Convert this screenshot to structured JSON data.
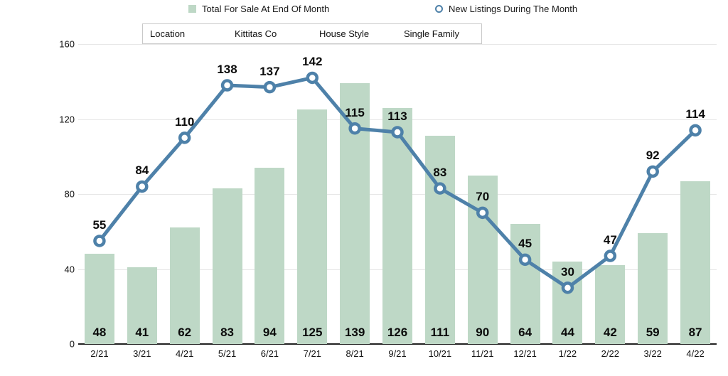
{
  "legend": {
    "bar_label": "Total For Sale At End Of Month",
    "line_label": "New Listings During The Month"
  },
  "filter_table": {
    "cells": [
      "Location",
      "Kittitas Co",
      "House Style",
      "Single Family"
    ]
  },
  "colors": {
    "bar": "#bed8c6",
    "line": "#4e81a9",
    "marker_fill": "#ffffff",
    "grid": "#e7e7e7",
    "axis": "#222222",
    "text": "#111111"
  },
  "chart_data": {
    "type": "bar+line combo",
    "categories": [
      "2/21",
      "3/21",
      "4/21",
      "5/21",
      "6/21",
      "7/21",
      "8/21",
      "9/21",
      "10/21",
      "11/21",
      "12/21",
      "1/22",
      "2/22",
      "3/22",
      "4/22"
    ],
    "series": [
      {
        "name": "Total For Sale At End Of Month",
        "type": "bar",
        "values": [
          48,
          41,
          62,
          83,
          94,
          125,
          139,
          126,
          111,
          90,
          64,
          44,
          42,
          59,
          87
        ]
      },
      {
        "name": "New Listings During The Month",
        "type": "line",
        "values": [
          55,
          84,
          110,
          138,
          137,
          142,
          115,
          113,
          83,
          70,
          45,
          30,
          47,
          92,
          114
        ]
      }
    ],
    "title": "",
    "xlabel": "",
    "ylabel": "",
    "ylim": [
      0,
      160
    ],
    "yticks": [
      0,
      40,
      80,
      120,
      160
    ],
    "grid": true,
    "legend_position": "top",
    "value_labels": "shown for both series"
  }
}
